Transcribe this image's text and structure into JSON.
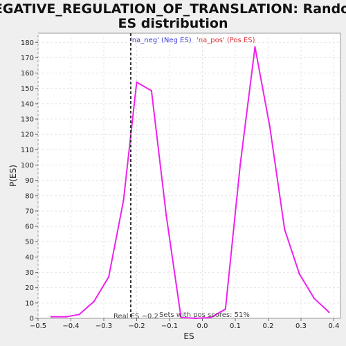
{
  "chart_data": {
    "type": "line",
    "title_line1": "NEGATIVE_REGULATION_OF_TRANSLATION: Random",
    "title_line2": "ES distribution",
    "xlabel": "ES",
    "ylabel": "P(ES)",
    "xlim": [
      -0.5,
      0.42
    ],
    "ylim": [
      0,
      186
    ],
    "xticks": [
      -0.5,
      -0.4,
      -0.3,
      -0.2,
      -0.1,
      0.0,
      0.1,
      0.2,
      0.3,
      0.4
    ],
    "xtick_labels": [
      "−0.5",
      "−0.4",
      "−0.3",
      "−0.2",
      "−0.1",
      "0.0",
      "0.1",
      "0.2",
      "0.3",
      "0.4"
    ],
    "yticks": [
      0,
      10,
      20,
      30,
      40,
      50,
      60,
      70,
      80,
      90,
      100,
      110,
      120,
      130,
      140,
      150,
      160,
      170,
      180
    ],
    "grid": true,
    "line_color": "#ee22ee",
    "real_es_line_color": "#333333",
    "series": [
      {
        "x": [
          -0.46,
          -0.415,
          -0.375,
          -0.33,
          -0.285,
          -0.24,
          -0.2,
          -0.155,
          -0.11,
          -0.065,
          -0.02,
          0.025,
          0.07,
          0.115,
          0.16,
          0.205,
          0.25,
          0.295,
          0.34,
          0.385
        ],
        "values": [
          1,
          1,
          2.5,
          11,
          27,
          77,
          154,
          148.5,
          67,
          0.5,
          0,
          0.5,
          6,
          100,
          177,
          125,
          58,
          29,
          13,
          4
        ]
      }
    ],
    "legend": {
      "neg": "'na_neg' (Neg ES)",
      "pos": "'na_pos' (Pos ES)"
    },
    "real_es": {
      "x": -0.218,
      "label": "Real ES −0.2"
    },
    "annotation": "Sets with pos scores: 51%"
  }
}
